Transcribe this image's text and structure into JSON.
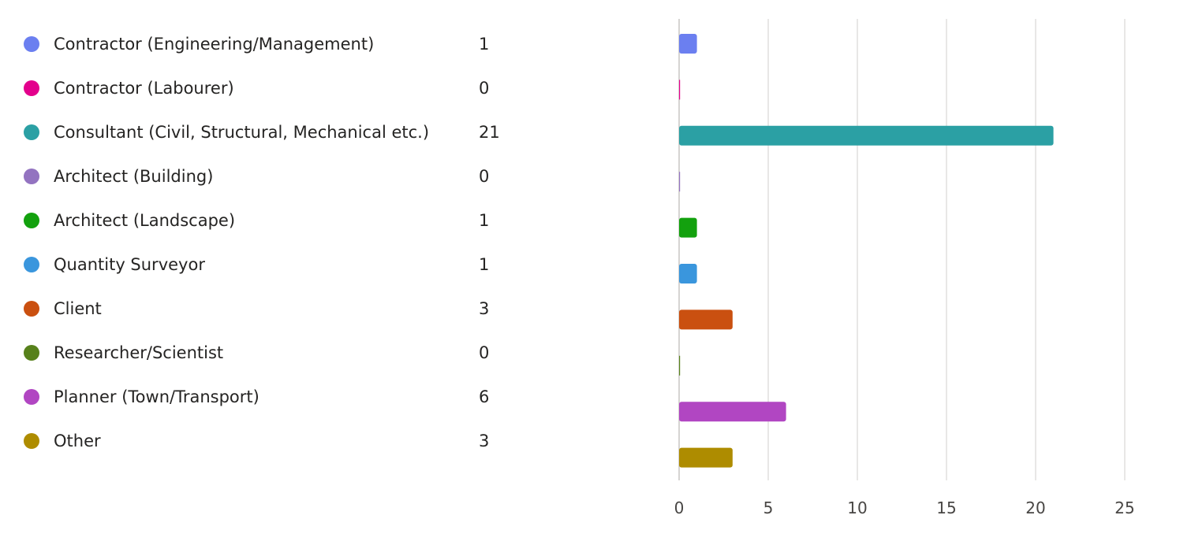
{
  "chart_data": {
    "type": "bar",
    "orientation": "horizontal",
    "categories": [
      "Contractor (Engineering/Management)",
      "Contractor (Labourer)",
      "Consultant (Civil, Structural, Mechanical etc.)",
      "Architect (Building)",
      "Architect (Landscape)",
      "Quantity Surveyor",
      "Client",
      "Researcher/Scientist",
      "Planner (Town/Transport)",
      "Other"
    ],
    "values": [
      1,
      0,
      21,
      0,
      1,
      1,
      3,
      0,
      6,
      3
    ],
    "colors": [
      "#6b7ff0",
      "#e3008c",
      "#2ba0a4",
      "#9373c0",
      "#13a10e",
      "#3a96dd",
      "#ca5010",
      "#57811b",
      "#b146c2",
      "#ae8c00"
    ],
    "xlim": [
      0,
      25
    ],
    "xticks": [
      0,
      5,
      10,
      15,
      20,
      25
    ],
    "grid": true,
    "legend": "left"
  }
}
